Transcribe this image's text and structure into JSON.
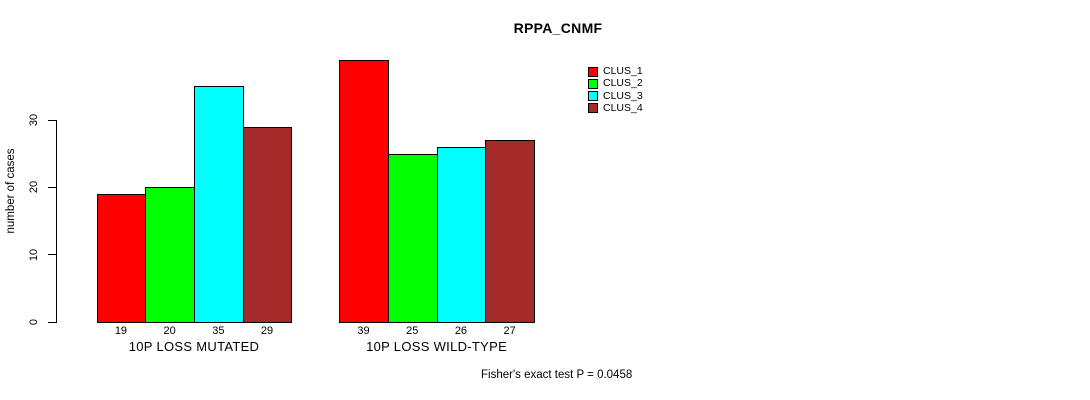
{
  "chart_data": {
    "type": "bar",
    "title": "RPPA_CNMF",
    "ylabel": "number of cases",
    "xlabel": "",
    "categories": [
      "10P LOSS MUTATED",
      "10P LOSS WILD-TYPE"
    ],
    "series": [
      {
        "name": "CLUS_1",
        "color": "#FF0000",
        "values": [
          19,
          39
        ]
      },
      {
        "name": "CLUS_2",
        "color": "#00FF00",
        "values": [
          20,
          25
        ]
      },
      {
        "name": "CLUS_3",
        "color": "#00FFFF",
        "values": [
          35,
          26
        ]
      },
      {
        "name": "CLUS_4",
        "color": "#A52A2A",
        "values": [
          29,
          27
        ]
      }
    ],
    "bar_value_labels": [
      [
        19,
        20,
        35,
        29
      ],
      [
        39,
        25,
        26,
        27
      ]
    ],
    "yticks": [
      0,
      10,
      20,
      30
    ],
    "ylim": [
      0,
      40
    ],
    "grid": false,
    "legend_position": "top-right",
    "legend": [
      "CLUS_1",
      "CLUS_2",
      "CLUS_3",
      "CLUS_4"
    ],
    "footnote": "Fisher's exact test P = 0.0458",
    "axis_color": "#000000",
    "background_color": "#FFFFFF"
  }
}
